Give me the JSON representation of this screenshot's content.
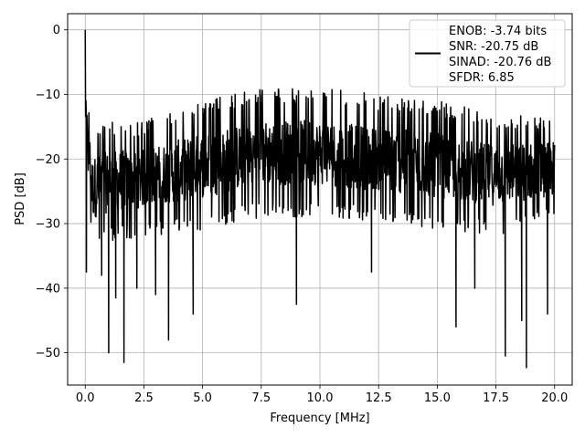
{
  "chart_data": {
    "type": "line",
    "title": "",
    "xlabel": "Frequency [MHz]",
    "ylabel": "PSD [dB]",
    "xlim": [
      -0.75,
      20.75
    ],
    "ylim": [
      -55,
      2.5
    ],
    "xticks": [
      0.0,
      2.5,
      5.0,
      7.5,
      10.0,
      12.5,
      15.0,
      17.5,
      20.0
    ],
    "xtick_labels": [
      "0.0",
      "2.5",
      "5.0",
      "7.5",
      "10.0",
      "12.5",
      "15.0",
      "17.5",
      "20.0"
    ],
    "yticks": [
      0,
      -10,
      -20,
      -30,
      -40,
      -50
    ],
    "ytick_labels": [
      "0",
      "−10",
      "−20",
      "−30",
      "−40",
      "−50"
    ],
    "grid": true,
    "legend_position": "top-right",
    "legend_lines": [
      "ENOB: -3.74 bits",
      "SNR: -20.75 dB",
      "SINAD: -20.76 dB",
      "SFDR: 6.85"
    ],
    "line_color": "#000000",
    "series": [
      {
        "x_range": [
          0.0,
          20.0
        ],
        "peak": {
          "x": 0.0,
          "y": 0.0
        },
        "noise_floor_min": [
          [
            0.0,
            -16
          ],
          [
            0.3,
            -34
          ],
          [
            1.0,
            -33
          ],
          [
            2.5,
            -32
          ],
          [
            5.0,
            -31
          ],
          [
            7.5,
            -29
          ],
          [
            10.0,
            -29
          ],
          [
            12.5,
            -30
          ],
          [
            15.0,
            -31
          ],
          [
            17.5,
            -32
          ],
          [
            20.0,
            -30
          ]
        ],
        "noise_floor_max": [
          [
            0.0,
            -8
          ],
          [
            0.3,
            -15
          ],
          [
            1.0,
            -14
          ],
          [
            2.5,
            -14
          ],
          [
            5.0,
            -11
          ],
          [
            7.5,
            -9
          ],
          [
            10.0,
            -9
          ],
          [
            12.5,
            -10
          ],
          [
            15.0,
            -11
          ],
          [
            17.5,
            -13
          ],
          [
            20.0,
            -13
          ]
        ],
        "notable_dips": [
          [
            0.05,
            -37.5
          ],
          [
            0.7,
            -38
          ],
          [
            1.0,
            -50
          ],
          [
            1.3,
            -41.5
          ],
          [
            1.65,
            -51.5
          ],
          [
            2.2,
            -40
          ],
          [
            3.0,
            -41
          ],
          [
            3.55,
            -48
          ],
          [
            4.6,
            -44
          ],
          [
            9.0,
            -42.5
          ],
          [
            12.2,
            -37.5
          ],
          [
            15.8,
            -46
          ],
          [
            16.6,
            -40
          ],
          [
            17.9,
            -50.5
          ],
          [
            18.8,
            -52.3
          ],
          [
            18.6,
            -45
          ],
          [
            19.7,
            -44
          ]
        ]
      }
    ]
  }
}
